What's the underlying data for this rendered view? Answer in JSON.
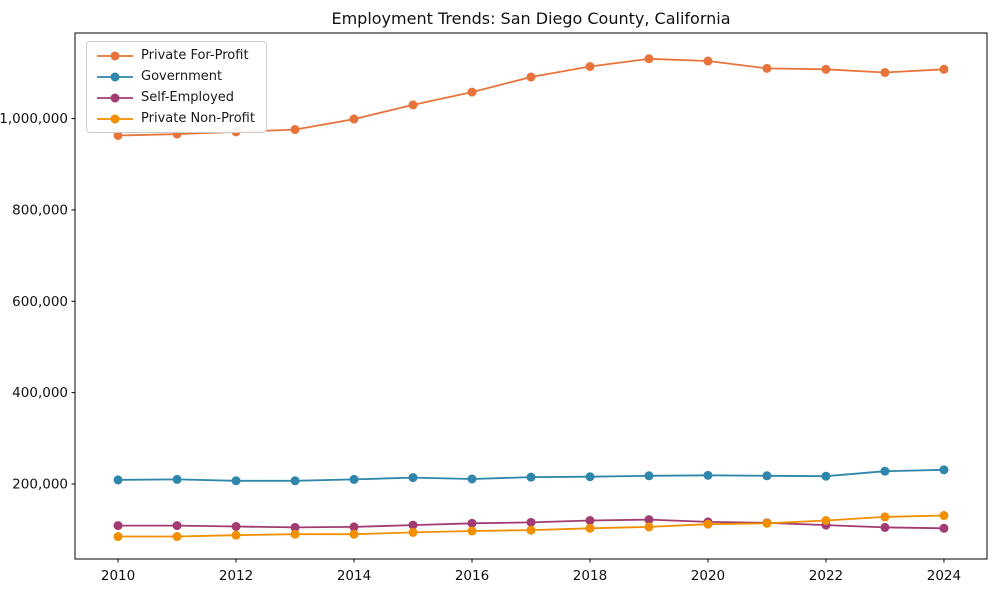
{
  "chart_data": {
    "type": "line",
    "title": "Employment Trends: San Diego County, California",
    "xlabel": "",
    "ylabel": "",
    "grid": false,
    "legend_position": "upper-left",
    "marker": "circle",
    "x": [
      2010,
      2011,
      2012,
      2013,
      2014,
      2015,
      2016,
      2017,
      2018,
      2019,
      2020,
      2021,
      2022,
      2023,
      2024
    ],
    "series": [
      {
        "name": "Private For-Profit",
        "color": "#E8743B",
        "values": [
          963000,
          966000,
          971000,
          976000,
          999000,
          1030000,
          1058000,
          1091000,
          1114000,
          1131000,
          1126000,
          1110000,
          1108000,
          1101000,
          1108000
        ]
      },
      {
        "name": "Government",
        "color": "#2E86AB",
        "values": [
          209000,
          210000,
          207000,
          207000,
          210000,
          214000,
          211000,
          215000,
          216000,
          218000,
          219000,
          218000,
          217000,
          228000,
          231000
        ]
      },
      {
        "name": "Self-Employed",
        "color": "#A23B72",
        "values": [
          109000,
          109000,
          107000,
          105000,
          106000,
          110000,
          114000,
          116000,
          120000,
          122000,
          117000,
          115000,
          110000,
          105000,
          103000
        ]
      },
      {
        "name": "Private Non-Profit",
        "color": "#F18F01",
        "values": [
          85000,
          85000,
          88000,
          90000,
          90000,
          94000,
          97000,
          99000,
          103000,
          106000,
          112000,
          114000,
          120000,
          128000,
          131000
        ]
      }
    ],
    "x_ticks": [
      {
        "value": 2010,
        "label": "2010"
      },
      {
        "value": 2012,
        "label": "2012"
      },
      {
        "value": 2014,
        "label": "2014"
      },
      {
        "value": 2016,
        "label": "2016"
      },
      {
        "value": 2018,
        "label": "2018"
      },
      {
        "value": 2020,
        "label": "2020"
      },
      {
        "value": 2022,
        "label": "2022"
      },
      {
        "value": 2024,
        "label": "2024"
      }
    ],
    "y_ticks": [
      {
        "value": 200000,
        "label": "200,000"
      },
      {
        "value": 400000,
        "label": "400,000"
      },
      {
        "value": 600000,
        "label": "600,000"
      },
      {
        "value": 800000,
        "label": "800,000"
      },
      {
        "value": 1000000,
        "label": "1,000,000"
      }
    ],
    "xlim": [
      2009.27,
      2024.73
    ],
    "ylim": [
      35800,
      1187400
    ]
  }
}
